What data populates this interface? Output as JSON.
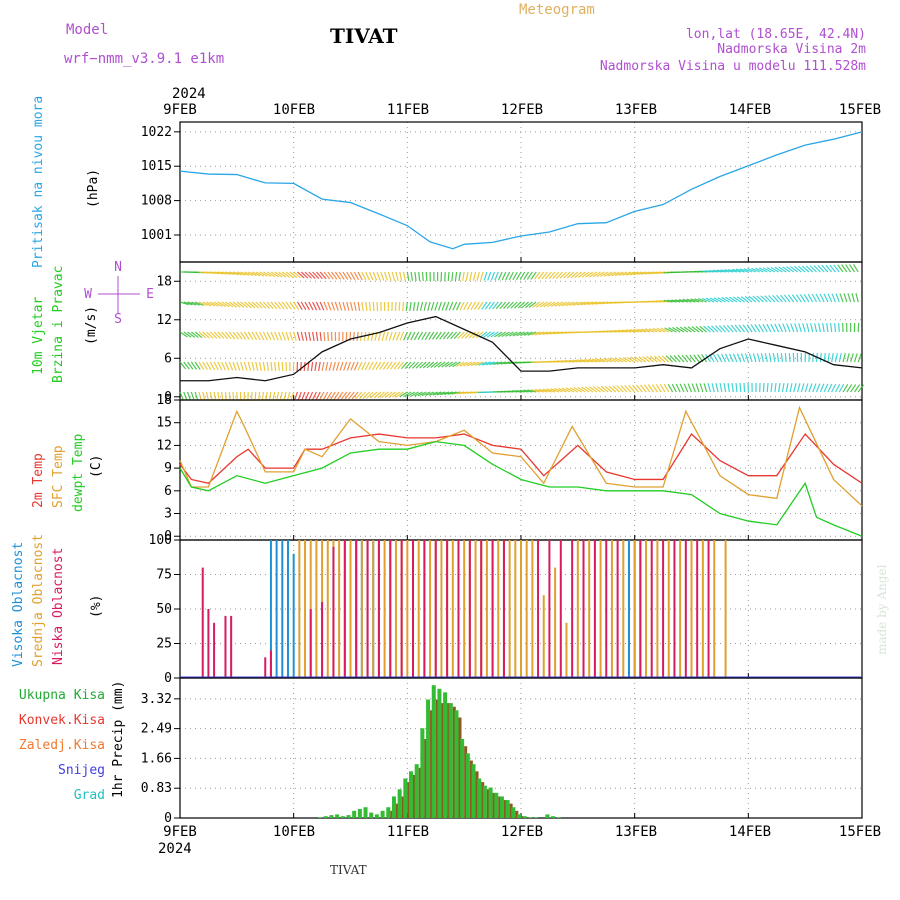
{
  "header": {
    "model_label": "Model",
    "model_name": "wrf−nmm_v3.9.1  e1km",
    "station": "TIVAT",
    "meteogram_label": "Meteogram",
    "lonlat": "lon,lat (18.65E, 42.4N)",
    "elevation": "Nadmorska Visina 2m",
    "model_elevation": "Nadmorska Visina u modelu 111.528m"
  },
  "year": "2024",
  "x_axis": {
    "categories": [
      "9FEB",
      "10FEB",
      "11FEB",
      "12FEB",
      "13FEB",
      "14FEB",
      "15FEB"
    ],
    "year": "2024"
  },
  "footer": {
    "station": "TIVAT",
    "watermark": "made by Angel"
  },
  "colors": {
    "pressure": "#2aa6e6",
    "temp2m": "#e8372f",
    "sfc": "#e0a030",
    "dew": "#22cc22",
    "high_cloud": "#1e90d8",
    "mid_cloud": "#e0a030",
    "low_cloud": "#d81b60",
    "precip_total": "#33bb33",
    "precip_conv": "#e8372f"
  },
  "chart_data": [
    {
      "type": "line",
      "panel": "pressure",
      "ylabel": [
        "Pritisak na nivou mora",
        "(hPa)"
      ],
      "yticks": [
        1001,
        1008,
        1015,
        1022
      ],
      "ylim": [
        995.5,
        1024
      ],
      "grid": true,
      "series": [
        {
          "x": [
            0,
            0.25,
            0.5,
            0.75,
            1.0,
            1.25,
            1.5,
            1.75,
            2.0,
            2.2,
            2.4,
            2.5,
            2.75,
            3.0,
            3.25,
            3.5,
            3.75,
            4.0,
            4.25,
            4.5,
            4.75,
            5.0,
            5.25,
            5.5,
            5.75,
            6.0
          ],
          "values": [
            1014,
            1013.4,
            1013.3,
            1011.6,
            1011.5,
            1008.3,
            1007.6,
            1005.3,
            1002.9,
            999.6,
            998.2,
            999.1,
            999.5,
            1000.8,
            1001.6,
            1003.3,
            1003.5,
            1005.8,
            1007.2,
            1010.3,
            1012.9,
            1015.1,
            1017.3,
            1019.3,
            1020.5,
            1022.0
          ]
        }
      ]
    },
    {
      "type": "line",
      "panel": "wind",
      "ylabel": [
        "10m Vjetar",
        "Brzina i Pravac",
        "(m/s)"
      ],
      "compass": [
        "N",
        "W",
        "E",
        "S"
      ],
      "yticks": [
        0,
        6,
        12,
        18
      ],
      "ylim": [
        -0.5,
        21
      ],
      "grid": true,
      "series": [
        {
          "x": [
            0,
            0.25,
            0.5,
            0.75,
            1.0,
            1.25,
            1.5,
            1.75,
            2.0,
            2.25,
            2.5,
            2.75,
            3.0,
            3.25,
            3.5,
            3.75,
            4.0,
            4.25,
            4.5,
            4.75,
            5.0,
            5.25,
            5.5,
            5.75,
            6.0
          ],
          "values": [
            2.5,
            2.5,
            3.0,
            2.5,
            3.5,
            7.0,
            9.0,
            10.0,
            11.5,
            12.5,
            10.5,
            8.5,
            4.0,
            4.0,
            4.5,
            4.5,
            4.5,
            5.0,
            4.5,
            7.5,
            9.0,
            8.0,
            7.0,
            5.0,
            4.5
          ]
        }
      ]
    },
    {
      "type": "line",
      "panel": "temperature",
      "ylabel": [
        "2m Temp",
        "SFC Temp",
        "dewpt Temp",
        "(C)"
      ],
      "yticks": [
        0,
        3,
        6,
        9,
        12,
        15,
        18
      ],
      "ylim": [
        -0.5,
        18
      ],
      "grid": true,
      "series": [
        {
          "name": "2m Temp",
          "x": [
            0,
            0.1,
            0.25,
            0.5,
            0.6,
            0.75,
            1.0,
            1.1,
            1.25,
            1.5,
            1.75,
            2.0,
            2.25,
            2.5,
            2.75,
            3.0,
            3.2,
            3.5,
            3.75,
            4.0,
            4.25,
            4.5,
            4.75,
            5.0,
            5.25,
            5.5,
            5.75,
            6.0
          ],
          "values": [
            9.5,
            7.5,
            7.0,
            10.5,
            11.5,
            9.0,
            9.0,
            11.5,
            11.5,
            13.0,
            13.5,
            13.0,
            13.0,
            13.5,
            12.0,
            11.5,
            8.0,
            12.0,
            8.5,
            7.5,
            7.5,
            13.5,
            10.0,
            8.0,
            8.0,
            13.5,
            9.5,
            7.0
          ]
        },
        {
          "name": "SFC Temp",
          "x": [
            0,
            0.1,
            0.25,
            0.5,
            0.55,
            0.75,
            1.0,
            1.1,
            1.25,
            1.5,
            1.75,
            2.0,
            2.25,
            2.5,
            2.75,
            3.0,
            3.2,
            3.45,
            3.75,
            4.0,
            4.25,
            4.45,
            4.75,
            5.0,
            5.25,
            5.45,
            5.75,
            6.0
          ],
          "values": [
            10.0,
            6.5,
            6.5,
            16.5,
            15.0,
            8.5,
            8.5,
            11.5,
            10.5,
            15.5,
            12.5,
            12.0,
            12.5,
            14.0,
            11.0,
            10.5,
            7.0,
            14.5,
            7.0,
            6.5,
            6.5,
            16.5,
            8.0,
            5.5,
            5.0,
            17.0,
            7.5,
            4.0
          ]
        },
        {
          "name": "dewpt Temp",
          "x": [
            0,
            0.1,
            0.25,
            0.5,
            0.75,
            1.0,
            1.25,
            1.5,
            1.75,
            2.0,
            2.25,
            2.5,
            2.75,
            3.0,
            3.25,
            3.5,
            3.75,
            4.0,
            4.25,
            4.5,
            4.75,
            5.0,
            5.25,
            5.5,
            5.6,
            5.75,
            6.0
          ],
          "values": [
            9.0,
            6.5,
            6.0,
            8.0,
            7.0,
            8.0,
            9.0,
            11.0,
            11.5,
            11.5,
            12.5,
            12.0,
            9.5,
            7.5,
            6.5,
            6.5,
            6.0,
            6.0,
            6.0,
            5.5,
            3.0,
            2.0,
            1.5,
            7.0,
            2.5,
            1.5,
            0.0
          ]
        }
      ]
    },
    {
      "type": "bar",
      "panel": "cloud",
      "ylabel": [
        "Visoka Oblacnost",
        "Srednja Oblacnost",
        "Niska Oblacnost",
        "(%)"
      ],
      "yticks": [
        0,
        25,
        50,
        75,
        100
      ],
      "ylim": [
        0,
        100
      ],
      "grid": true,
      "series": [
        {
          "name": "Visoka Oblacnost",
          "x": [
            0.8,
            0.85,
            0.9,
            0.95,
            1.0,
            1.5,
            1.55,
            1.6,
            1.65,
            1.7,
            3.95,
            4.0,
            4.05
          ],
          "values": [
            100,
            100,
            100,
            100,
            90,
            100,
            100,
            100,
            100,
            100,
            100,
            100,
            100
          ]
        },
        {
          "name": "Srednja Oblacnost",
          "x": [
            1.05,
            1.1,
            1.15,
            1.2,
            1.25,
            1.3,
            1.35,
            1.4,
            1.45,
            1.5,
            1.55,
            1.6,
            1.65,
            1.7,
            1.75,
            1.8,
            1.85,
            1.9,
            1.95,
            2.0,
            2.05,
            2.1,
            2.15,
            2.2,
            2.25,
            2.3,
            2.35,
            2.4,
            2.45,
            2.5,
            2.55,
            2.6,
            2.65,
            2.7,
            2.75,
            2.8,
            2.85,
            2.9,
            2.95,
            3.0,
            3.05,
            3.1,
            3.2,
            3.3,
            3.4,
            3.5,
            3.6,
            3.7,
            3.8,
            3.9,
            4.0,
            4.1,
            4.2,
            4.3,
            4.4,
            4.5,
            4.6,
            4.7,
            4.8
          ],
          "values": [
            100,
            100,
            100,
            100,
            100,
            100,
            100,
            100,
            100,
            100,
            100,
            100,
            100,
            100,
            100,
            100,
            100,
            100,
            100,
            100,
            100,
            100,
            100,
            100,
            100,
            100,
            100,
            100,
            100,
            100,
            100,
            100,
            100,
            100,
            100,
            100,
            100,
            100,
            100,
            100,
            100,
            100,
            60,
            80,
            40,
            100,
            100,
            100,
            100,
            100,
            100,
            100,
            100,
            100,
            100,
            100,
            100,
            100,
            100
          ]
        },
        {
          "name": "Niska Oblacnost",
          "x": [
            0.2,
            0.25,
            0.3,
            0.4,
            0.45,
            0.75,
            0.8,
            1.15,
            1.25,
            1.35,
            1.45,
            1.55,
            1.65,
            1.75,
            1.85,
            1.95,
            2.05,
            2.15,
            2.25,
            2.35,
            2.45,
            2.55,
            2.65,
            2.75,
            2.85,
            3.15,
            3.25,
            3.35,
            3.45,
            3.55,
            3.65,
            3.75,
            3.85,
            4.05,
            4.15,
            4.25,
            4.35,
            4.45,
            4.55,
            4.65
          ],
          "values": [
            80,
            50,
            40,
            45,
            45,
            15,
            20,
            50,
            55,
            95,
            100,
            100,
            100,
            100,
            100,
            100,
            100,
            100,
            100,
            100,
            100,
            100,
            100,
            100,
            100,
            100,
            100,
            100,
            100,
            100,
            100,
            100,
            100,
            100,
            100,
            100,
            100,
            100,
            100,
            100
          ]
        }
      ]
    },
    {
      "type": "bar",
      "panel": "precip",
      "ylabel": [
        "1hr Precip (mm)"
      ],
      "legend": [
        "Ukupna Kisa",
        "Konvek.Kisa",
        "Zaledj.Kisa",
        "Snijeg",
        "Grad"
      ],
      "yticks": [
        0,
        0.83,
        1.66,
        2.49,
        3.32
      ],
      "ylim": [
        0,
        3.9
      ],
      "grid": true,
      "x": [
        1.25,
        1.3,
        1.35,
        1.4,
        1.45,
        1.5,
        1.55,
        1.6,
        1.65,
        1.7,
        1.75,
        1.8,
        1.85,
        1.9,
        1.95,
        2.0,
        2.05,
        2.1,
        2.15,
        2.2,
        2.25,
        2.3,
        2.35,
        2.4,
        2.45,
        2.5,
        2.55,
        2.6,
        2.65,
        2.7,
        2.75,
        2.8,
        2.85,
        2.9,
        2.95,
        3.0,
        3.05,
        3.1,
        3.15,
        3.2,
        3.25,
        3.3,
        3.35
      ],
      "series": [
        {
          "name": "Ukupna Kisa",
          "values": [
            0.02,
            0.05,
            0.08,
            0.1,
            0.05,
            0.08,
            0.2,
            0.25,
            0.3,
            0.15,
            0.1,
            0.2,
            0.3,
            0.6,
            0.8,
            1.1,
            1.3,
            1.5,
            2.5,
            3.3,
            3.7,
            3.6,
            3.5,
            3.2,
            3.0,
            2.2,
            1.8,
            1.5,
            1.1,
            0.9,
            0.85,
            0.7,
            0.6,
            0.5,
            0.3,
            0.1,
            0.05,
            0.02,
            0.02,
            0.0,
            0.1,
            0.05,
            0.02
          ]
        },
        {
          "name": "Konvek.Kisa",
          "values": [
            0.0,
            0.0,
            0.0,
            0.0,
            0.0,
            0.0,
            0.0,
            0.0,
            0.0,
            0.0,
            0.0,
            0.0,
            0.2,
            0.4,
            0.6,
            1.0,
            1.2,
            1.4,
            2.2,
            3.0,
            3.3,
            3.2,
            3.2,
            3.1,
            2.8,
            2.0,
            1.6,
            1.3,
            1.0,
            0.8,
            0.7,
            0.6,
            0.5,
            0.4,
            0.2,
            0.05,
            0.0,
            0.0,
            0.0,
            0.0,
            0.0,
            0.0,
            0.0
          ]
        }
      ]
    }
  ]
}
